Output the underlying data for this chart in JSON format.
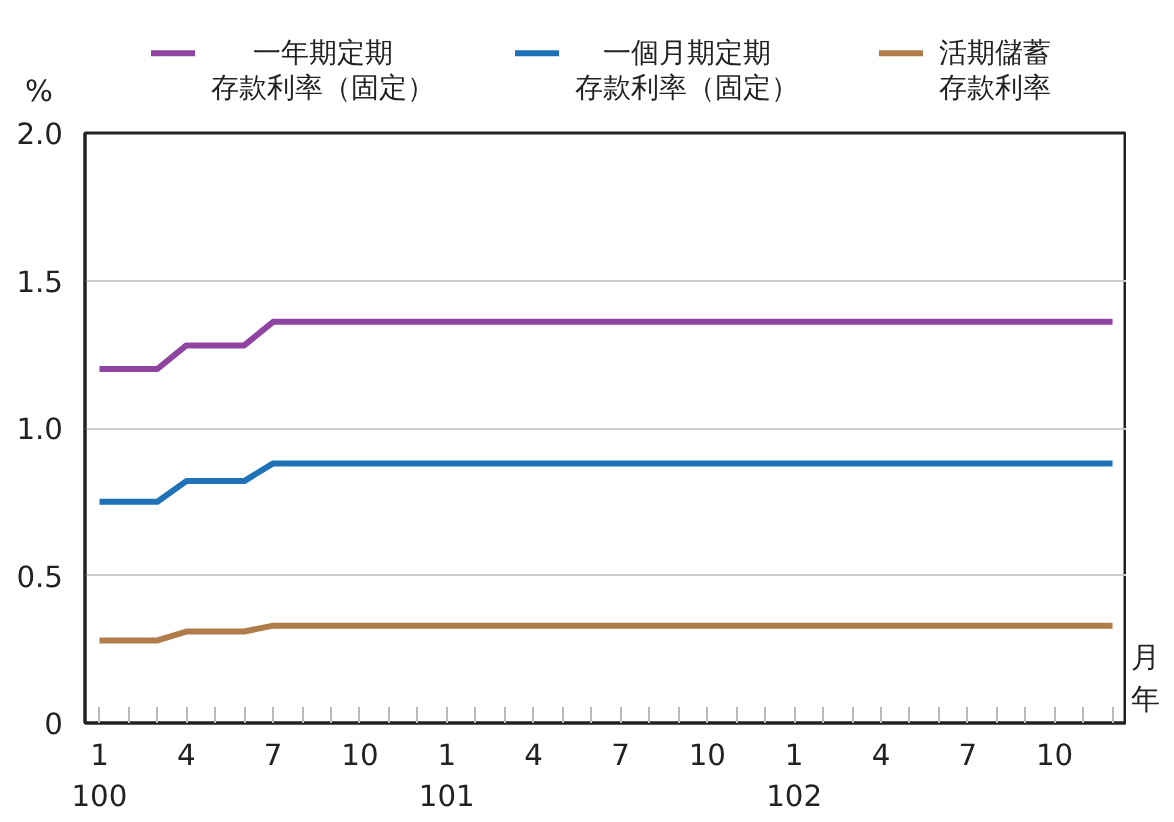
{
  "chart_data": {
    "type": "line",
    "ylabel": "%",
    "xlabel": "月年",
    "categories": [
      "1\n100",
      null,
      null,
      "4",
      null,
      null,
      "7",
      null,
      null,
      "10",
      null,
      null,
      "1\n101",
      null,
      null,
      "4",
      null,
      null,
      "7",
      null,
      null,
      "10",
      null,
      null,
      "1\n102",
      null,
      null,
      "4",
      null,
      null,
      "7",
      null,
      null,
      "10",
      null,
      null
    ],
    "ylim": [
      0,
      2.0
    ],
    "yticks": [
      {
        "value": 0,
        "label": "0"
      },
      {
        "value": 0.5,
        "label": "0.5"
      },
      {
        "value": 1.0,
        "label": "1.0"
      },
      {
        "value": 1.5,
        "label": "1.5"
      },
      {
        "value": 2.0,
        "label": "2.0"
      }
    ],
    "grid": "y",
    "legend": "top",
    "line_style": "solid",
    "series": [
      {
        "name": "一年期定期存款利率（固定）",
        "color": "#8e44a0",
        "values": [
          1.2,
          1.2,
          1.2,
          1.28,
          1.28,
          1.28,
          1.36,
          1.36,
          1.36,
          1.36,
          1.36,
          1.36,
          1.36,
          1.36,
          1.36,
          1.36,
          1.36,
          1.36,
          1.36,
          1.36,
          1.36,
          1.36,
          1.36,
          1.36,
          1.36,
          1.36,
          1.36,
          1.36,
          1.36,
          1.36,
          1.36,
          1.36,
          1.36,
          1.36,
          1.36,
          1.36
        ]
      },
      {
        "name": "一個月期定期存款利率（固定）",
        "color": "#1f72b8",
        "values": [
          0.75,
          0.75,
          0.75,
          0.82,
          0.82,
          0.82,
          0.88,
          0.88,
          0.88,
          0.88,
          0.88,
          0.88,
          0.88,
          0.88,
          0.88,
          0.88,
          0.88,
          0.88,
          0.88,
          0.88,
          0.88,
          0.88,
          0.88,
          0.88,
          0.88,
          0.88,
          0.88,
          0.88,
          0.88,
          0.88,
          0.88,
          0.88,
          0.88,
          0.88,
          0.88,
          0.88
        ]
      },
      {
        "name": "活期儲蓄存款利率",
        "color": "#b07d4a",
        "values": [
          0.28,
          0.28,
          0.28,
          0.31,
          0.31,
          0.31,
          0.33,
          0.33,
          0.33,
          0.33,
          0.33,
          0.33,
          0.33,
          0.33,
          0.33,
          0.33,
          0.33,
          0.33,
          0.33,
          0.33,
          0.33,
          0.33,
          0.33,
          0.33,
          0.33,
          0.33,
          0.33,
          0.33,
          0.33,
          0.33,
          0.33,
          0.33,
          0.33,
          0.33,
          0.33,
          0.33
        ]
      }
    ]
  }
}
